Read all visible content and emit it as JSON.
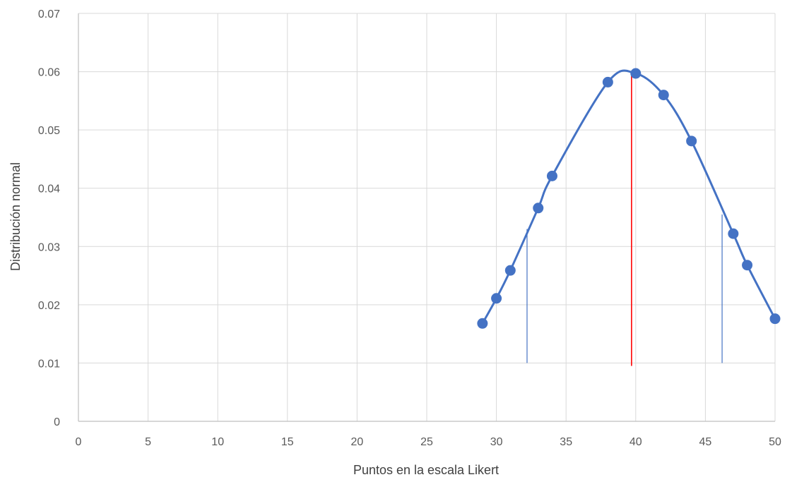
{
  "chart_data": {
    "type": "scatter",
    "title": "",
    "xlabel": "Puntos en la escala Likert",
    "ylabel": "Distribución normal",
    "xlim": [
      0,
      50
    ],
    "ylim": [
      0,
      0.07
    ],
    "x_ticks": [
      "0",
      "5",
      "10",
      "15",
      "20",
      "25",
      "30",
      "35",
      "40",
      "45",
      "50"
    ],
    "y_ticks": [
      "0",
      "0.01",
      "0.02",
      "0.03",
      "0.04",
      "0.05",
      "0.06",
      "0.07"
    ],
    "grid": true,
    "legend": "none",
    "series": [
      {
        "color": "#4472c4",
        "mode": "lines+markers",
        "smooth": true,
        "x": [
          29,
          30,
          31,
          33,
          34,
          38,
          40,
          42,
          44,
          47,
          48,
          50
        ],
        "y": [
          0.0168,
          0.0211,
          0.0259,
          0.0366,
          0.0421,
          0.0582,
          0.0597,
          0.056,
          0.0481,
          0.0322,
          0.0268,
          0.0176
        ]
      }
    ],
    "vertical_lines": [
      {
        "x": 32.2,
        "y_from": 0.01,
        "y_to": 0.033,
        "color": "#4472c4"
      },
      {
        "x": 39.7,
        "y_from": 0.0095,
        "y_to": 0.0597,
        "color": "#ff0000"
      },
      {
        "x": 46.2,
        "y_from": 0.01,
        "y_to": 0.0355,
        "color": "#4472c4"
      }
    ]
  }
}
